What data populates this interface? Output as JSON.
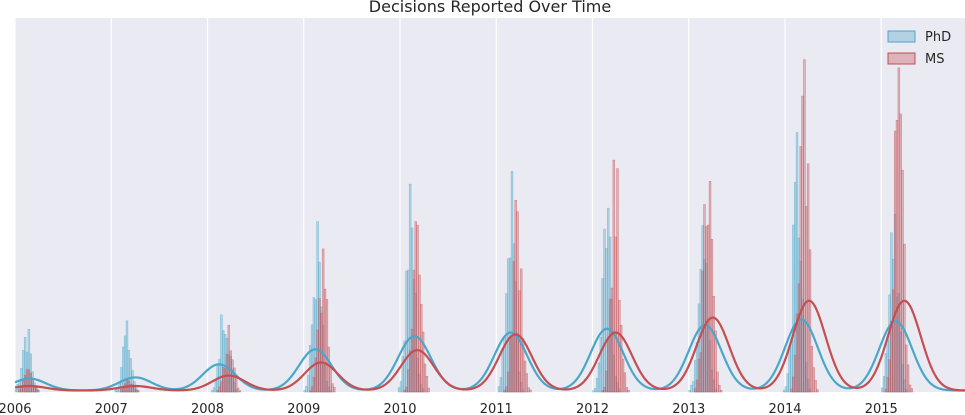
{
  "chart_data": {
    "type": "bar",
    "title": "Decisions Reported Over Time",
    "xlabel": "",
    "ylabel": "",
    "x_ticks": [
      "2006",
      "2007",
      "2008",
      "2009",
      "2010",
      "2011",
      "2012",
      "2013",
      "2014",
      "2015"
    ],
    "xlim": [
      2006.0,
      2015.87
    ],
    "ylim": [
      0,
      1
    ],
    "grid": "vertical lines at each year",
    "legend": {
      "placement": "top-right"
    },
    "notes": "Histograms of decision counts (relative scale, y-axis unlabeled) with smoothed density curves for each program.",
    "series": [
      {
        "name": "PhD",
        "color": "#4aa7c9",
        "peaks": [
          {
            "x": 2006.12,
            "value": 0.18
          },
          {
            "x": 2007.16,
            "value": 0.17
          },
          {
            "x": 2008.18,
            "value": 0.27
          },
          {
            "x": 2009.14,
            "value": 0.42
          },
          {
            "x": 2010.11,
            "value": 0.51
          },
          {
            "x": 2011.15,
            "value": 0.56
          },
          {
            "x": 2012.15,
            "value": 0.57
          },
          {
            "x": 2013.15,
            "value": 0.6
          },
          {
            "x": 2014.13,
            "value": 0.63
          },
          {
            "x": 2015.13,
            "value": 0.59
          }
        ],
        "smooth_peaks": [
          {
            "x": 2006.15,
            "value": 0.032
          },
          {
            "x": 2007.25,
            "value": 0.035
          },
          {
            "x": 2008.12,
            "value": 0.07
          },
          {
            "x": 2009.12,
            "value": 0.11
          },
          {
            "x": 2010.15,
            "value": 0.145
          },
          {
            "x": 2011.15,
            "value": 0.155
          },
          {
            "x": 2012.15,
            "value": 0.165
          },
          {
            "x": 2013.17,
            "value": 0.175
          },
          {
            "x": 2014.17,
            "value": 0.19
          },
          {
            "x": 2015.15,
            "value": 0.185
          }
        ]
      },
      {
        "name": "MS",
        "color": "#c44e52",
        "peaks": [
          {
            "x": 2006.14,
            "value": 0.06
          },
          {
            "x": 2007.18,
            "value": 0.03
          },
          {
            "x": 2008.22,
            "value": 0.16
          },
          {
            "x": 2009.2,
            "value": 0.36
          },
          {
            "x": 2010.18,
            "value": 0.51
          },
          {
            "x": 2011.22,
            "value": 0.53
          },
          {
            "x": 2012.24,
            "value": 0.6
          },
          {
            "x": 2013.2,
            "value": 0.7
          },
          {
            "x": 2014.2,
            "value": 0.9
          },
          {
            "x": 2015.18,
            "value": 0.86
          }
        ],
        "smooth_peaks": [
          {
            "x": 2006.15,
            "value": 0.012
          },
          {
            "x": 2007.25,
            "value": 0.012
          },
          {
            "x": 2008.22,
            "value": 0.04
          },
          {
            "x": 2009.18,
            "value": 0.075
          },
          {
            "x": 2010.18,
            "value": 0.108
          },
          {
            "x": 2011.2,
            "value": 0.15
          },
          {
            "x": 2012.24,
            "value": 0.155
          },
          {
            "x": 2013.25,
            "value": 0.195
          },
          {
            "x": 2014.25,
            "value": 0.24
          },
          {
            "x": 2015.24,
            "value": 0.24
          }
        ]
      }
    ]
  }
}
